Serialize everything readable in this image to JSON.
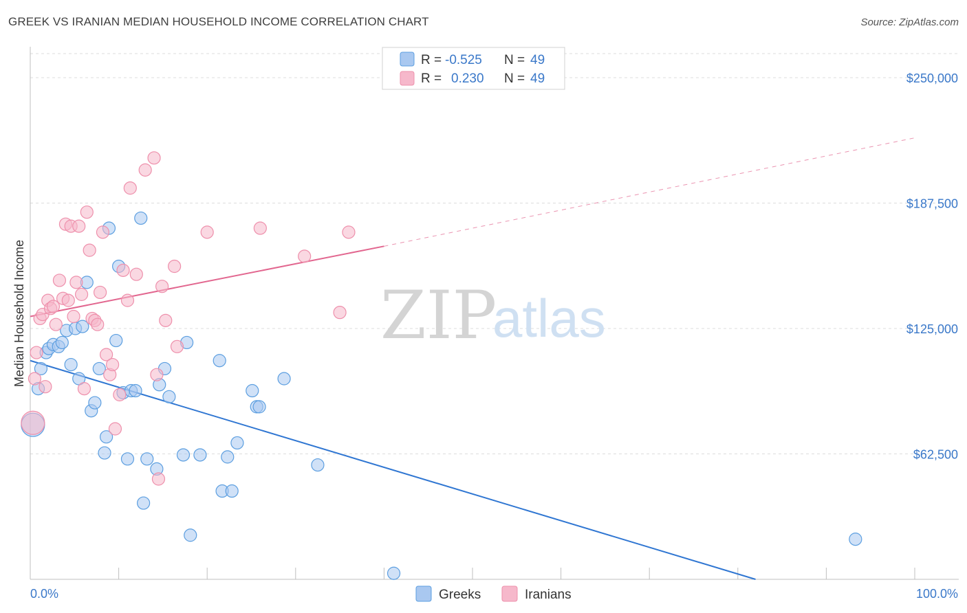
{
  "title": "GREEK VS IRANIAN MEDIAN HOUSEHOLD INCOME CORRELATION CHART",
  "source": "Source: ZipAtlas.com",
  "watermark": {
    "zip": "ZIP",
    "atlas": "atlas"
  },
  "legend_top": [
    {
      "r_label": "R =",
      "r_value": "-0.525",
      "n_label": "N =",
      "n_value": "49",
      "color": "#a9c8f0"
    },
    {
      "r_label": "R =",
      "r_value": "0.230",
      "n_label": "N =",
      "n_value": "49",
      "color": "#f6b8cb"
    }
  ],
  "legend_bottom": [
    {
      "label": "Greeks",
      "color": "#a9c8f0"
    },
    {
      "label": "Iranians",
      "color": "#f6b8cb"
    }
  ],
  "chart_data": {
    "type": "scatter",
    "title": "GREEK VS IRANIAN MEDIAN HOUSEHOLD INCOME CORRELATION CHART",
    "xlabel": "",
    "ylabel": "Median Household Income",
    "x_tick_labels": [
      "0.0%",
      "100.0%"
    ],
    "y_tick_labels": [
      "$62,500",
      "$125,000",
      "$187,500",
      "$250,000"
    ],
    "y_ticks": [
      62500,
      125000,
      187500,
      250000
    ],
    "xlim": [
      0,
      100
    ],
    "ylim": [
      0,
      262000
    ],
    "grid": true,
    "legend_position": "top-center",
    "series": [
      {
        "name": "Greeks",
        "color": "#a9c8f0",
        "stroke": "#5b9ee0",
        "trend": {
          "x0": 0,
          "y0": 109000,
          "x1": 82,
          "y1": 0,
          "color": "#2f76d2"
        },
        "points": [
          [
            0.3,
            77000
          ],
          [
            0.9,
            95000
          ],
          [
            1.2,
            105000
          ],
          [
            1.8,
            113000
          ],
          [
            2.1,
            115000
          ],
          [
            2.6,
            117000
          ],
          [
            3.2,
            116000
          ],
          [
            3.6,
            118000
          ],
          [
            4.1,
            124000
          ],
          [
            4.6,
            107000
          ],
          [
            5.1,
            125000
          ],
          [
            5.5,
            100000
          ],
          [
            5.9,
            126000
          ],
          [
            6.4,
            148000
          ],
          [
            6.9,
            84000
          ],
          [
            7.3,
            88000
          ],
          [
            7.8,
            105000
          ],
          [
            8.4,
            63000
          ],
          [
            8.6,
            71000
          ],
          [
            8.9,
            175000
          ],
          [
            9.7,
            119000
          ],
          [
            10.0,
            156000
          ],
          [
            10.5,
            93000
          ],
          [
            11.0,
            60000
          ],
          [
            11.4,
            94000
          ],
          [
            11.9,
            94000
          ],
          [
            12.5,
            180000
          ],
          [
            12.8,
            38000
          ],
          [
            13.2,
            60000
          ],
          [
            14.3,
            55000
          ],
          [
            14.6,
            97000
          ],
          [
            15.2,
            105000
          ],
          [
            15.7,
            91000
          ],
          [
            17.3,
            62000
          ],
          [
            17.7,
            118000
          ],
          [
            18.1,
            22000
          ],
          [
            19.2,
            62000
          ],
          [
            21.4,
            109000
          ],
          [
            21.7,
            44000
          ],
          [
            22.3,
            61000
          ],
          [
            22.8,
            44000
          ],
          [
            23.4,
            68000
          ],
          [
            25.1,
            94000
          ],
          [
            25.6,
            86000
          ],
          [
            25.9,
            86000
          ],
          [
            28.7,
            100000
          ],
          [
            32.5,
            57000
          ],
          [
            41.1,
            3000
          ],
          [
            93.3,
            20000
          ]
        ]
      },
      {
        "name": "Iranians",
        "color": "#f6b8cb",
        "stroke": "#ee8fab",
        "trend": {
          "x0": 0,
          "y0": 131000,
          "x1": 40,
          "y1": 166000,
          "color": "#e2668f",
          "dash_to_x": 100,
          "dash_to_y": 220000
        },
        "points": [
          [
            0.3,
            78000
          ],
          [
            0.5,
            100000
          ],
          [
            0.7,
            113000
          ],
          [
            1.1,
            130000
          ],
          [
            1.4,
            132000
          ],
          [
            1.7,
            96000
          ],
          [
            2.0,
            139000
          ],
          [
            2.3,
            135000
          ],
          [
            2.6,
            136000
          ],
          [
            2.9,
            127000
          ],
          [
            3.3,
            149000
          ],
          [
            3.7,
            140000
          ],
          [
            4.0,
            177000
          ],
          [
            4.3,
            139000
          ],
          [
            4.6,
            176000
          ],
          [
            4.9,
            131000
          ],
          [
            5.2,
            148000
          ],
          [
            5.5,
            176000
          ],
          [
            5.8,
            142000
          ],
          [
            6.1,
            95000
          ],
          [
            6.4,
            183000
          ],
          [
            6.7,
            164000
          ],
          [
            7.0,
            130000
          ],
          [
            7.3,
            129000
          ],
          [
            7.6,
            127000
          ],
          [
            7.9,
            143000
          ],
          [
            8.2,
            173000
          ],
          [
            8.6,
            112000
          ],
          [
            9.0,
            102000
          ],
          [
            9.3,
            107000
          ],
          [
            9.6,
            75000
          ],
          [
            10.1,
            92000
          ],
          [
            10.5,
            154000
          ],
          [
            11.0,
            139000
          ],
          [
            11.3,
            195000
          ],
          [
            12.0,
            152000
          ],
          [
            13.0,
            204000
          ],
          [
            14.0,
            210000
          ],
          [
            14.3,
            102000
          ],
          [
            14.5,
            50000
          ],
          [
            14.9,
            146000
          ],
          [
            15.3,
            129000
          ],
          [
            16.3,
            156000
          ],
          [
            16.6,
            116000
          ],
          [
            20.0,
            173000
          ],
          [
            26.0,
            175000
          ],
          [
            31.0,
            161000
          ],
          [
            35.0,
            133000
          ],
          [
            36.0,
            173000
          ]
        ]
      }
    ]
  }
}
